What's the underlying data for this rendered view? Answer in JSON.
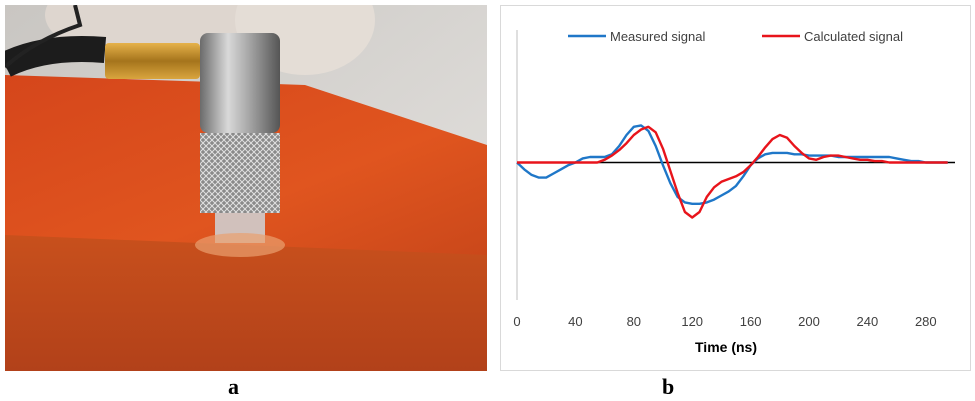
{
  "panels": {
    "a_label": "a",
    "b_label": "b"
  },
  "colors": {
    "measured": "#1f77c8",
    "calculated": "#e8141b",
    "baseline": "#000000",
    "axis": "#bfbfbf"
  },
  "chart_data": {
    "type": "line",
    "title": "",
    "xlabel": "Time (ns)",
    "ylabel": "",
    "xlim": [
      0,
      300
    ],
    "ylim": [
      -1,
      1
    ],
    "xticks": [
      "0",
      "40",
      "80",
      "120",
      "160",
      "200",
      "240",
      "280"
    ],
    "grid": false,
    "legend_position": "top",
    "baseline": 0,
    "series": [
      {
        "name": "Measured signal",
        "color": "#1f77c8",
        "x": [
          0,
          5,
          10,
          15,
          20,
          25,
          30,
          35,
          40,
          45,
          50,
          55,
          60,
          65,
          70,
          75,
          80,
          85,
          90,
          95,
          100,
          105,
          110,
          115,
          120,
          125,
          130,
          135,
          140,
          145,
          150,
          155,
          160,
          165,
          170,
          175,
          180,
          185,
          190,
          195,
          200,
          205,
          210,
          215,
          220,
          225,
          230,
          235,
          240,
          245,
          250,
          255,
          260,
          265,
          270,
          275,
          280,
          285,
          290,
          295
        ],
        "values": [
          0.0,
          -0.05,
          -0.09,
          -0.11,
          -0.11,
          -0.08,
          -0.05,
          -0.02,
          0.0,
          0.03,
          0.04,
          0.04,
          0.04,
          0.06,
          0.12,
          0.2,
          0.26,
          0.27,
          0.23,
          0.12,
          -0.02,
          -0.15,
          -0.25,
          -0.29,
          -0.3,
          -0.3,
          -0.29,
          -0.27,
          -0.24,
          -0.21,
          -0.17,
          -0.1,
          -0.02,
          0.03,
          0.06,
          0.07,
          0.07,
          0.07,
          0.06,
          0.06,
          0.05,
          0.05,
          0.05,
          0.05,
          0.04,
          0.04,
          0.04,
          0.04,
          0.04,
          0.04,
          0.04,
          0.04,
          0.03,
          0.02,
          0.01,
          0.01,
          0.0,
          0.0,
          0.0,
          0.0
        ]
      },
      {
        "name": "Calculated signal",
        "color": "#e8141b",
        "x": [
          0,
          5,
          10,
          15,
          20,
          25,
          30,
          35,
          40,
          45,
          50,
          55,
          60,
          65,
          70,
          75,
          80,
          85,
          90,
          95,
          100,
          105,
          110,
          115,
          120,
          125,
          130,
          135,
          140,
          145,
          150,
          155,
          160,
          165,
          170,
          175,
          180,
          185,
          190,
          195,
          200,
          205,
          210,
          215,
          220,
          225,
          230,
          235,
          240,
          245,
          250,
          255,
          260,
          265,
          270,
          275,
          280,
          285,
          290,
          295
        ],
        "values": [
          0.0,
          0.0,
          0.0,
          0.0,
          0.0,
          0.0,
          0.0,
          0.0,
          0.0,
          0.0,
          0.0,
          0.0,
          0.02,
          0.05,
          0.09,
          0.14,
          0.2,
          0.24,
          0.26,
          0.22,
          0.1,
          -0.06,
          -0.22,
          -0.36,
          -0.4,
          -0.36,
          -0.25,
          -0.18,
          -0.14,
          -0.12,
          -0.1,
          -0.07,
          -0.02,
          0.04,
          0.11,
          0.17,
          0.2,
          0.18,
          0.12,
          0.07,
          0.03,
          0.02,
          0.04,
          0.05,
          0.05,
          0.04,
          0.03,
          0.02,
          0.02,
          0.01,
          0.01,
          0.0,
          0.0,
          0.0,
          0.0,
          0.0,
          0.0,
          0.0,
          0.0,
          0.0
        ]
      }
    ]
  }
}
